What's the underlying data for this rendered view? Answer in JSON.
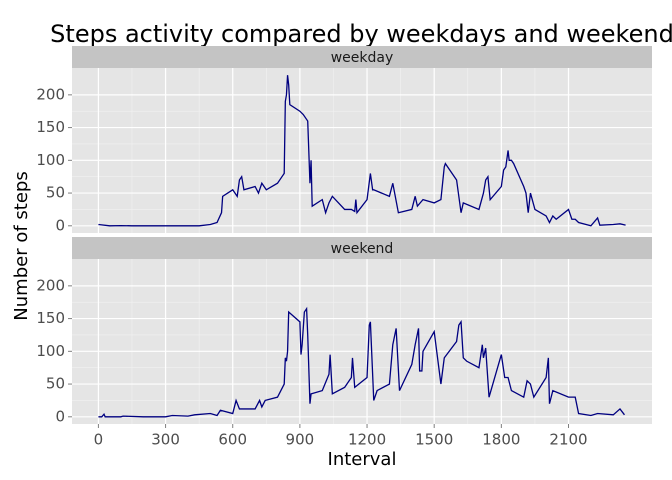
{
  "chart_data": {
    "type": "line",
    "title": "Steps activity compared by weekdays and weekend",
    "x_label": "Interval",
    "y_label": "Number of steps",
    "color": "#000080",
    "grid": true,
    "xlim": [
      -118,
      2473
    ],
    "xticks": [
      0,
      300,
      600,
      900,
      1200,
      1500,
      1800,
      2100
    ],
    "ylim": [
      -11,
      241
    ],
    "yticks": [
      0,
      50,
      100,
      150,
      200
    ],
    "panels": [
      {
        "name": "weekday",
        "x": [
          0,
          50,
          100,
          150,
          200,
          300,
          400,
          450,
          500,
          530,
          550,
          555,
          600,
          620,
          630,
          640,
          650,
          700,
          715,
          730,
          750,
          800,
          820,
          830,
          835,
          840,
          845,
          850,
          855,
          900,
          915,
          935,
          945,
          950,
          955,
          1000,
          1015,
          1030,
          1045,
          1100,
          1130,
          1145,
          1150,
          1155,
          1200,
          1215,
          1225,
          1230,
          1300,
          1315,
          1340,
          1400,
          1415,
          1425,
          1450,
          1500,
          1530,
          1545,
          1550,
          1600,
          1620,
          1630,
          1700,
          1720,
          1730,
          1740,
          1750,
          1800,
          1810,
          1820,
          1830,
          1835,
          1845,
          1855,
          1900,
          1910,
          1920,
          1930,
          1950,
          2000,
          2015,
          2030,
          2045,
          2100,
          2115,
          2130,
          2145,
          2200,
          2230,
          2240,
          2300,
          2330,
          2355
        ],
        "values": [
          2,
          0,
          0.3,
          0,
          0,
          0,
          0,
          0,
          2,
          5,
          20,
          45,
          55,
          45,
          70,
          75,
          55,
          60,
          50,
          65,
          55,
          65,
          75,
          80,
          190,
          200,
          230,
          215,
          185,
          175,
          170,
          160,
          65,
          100,
          30,
          40,
          20,
          35,
          45,
          25,
          25,
          22,
          40,
          20,
          40,
          80,
          55,
          55,
          45,
          65,
          20,
          25,
          45,
          30,
          40,
          35,
          40,
          90,
          95,
          70,
          20,
          35,
          25,
          50,
          70,
          75,
          40,
          60,
          85,
          90,
          115,
          100,
          100,
          95,
          60,
          50,
          20,
          50,
          25,
          15,
          5,
          15,
          10,
          25,
          10,
          10,
          5,
          0,
          12,
          1,
          2,
          3,
          1
        ]
      },
      {
        "name": "weekend",
        "x": [
          0,
          15,
          25,
          30,
          100,
          110,
          200,
          300,
          330,
          400,
          430,
          500,
          530,
          545,
          600,
          615,
          630,
          700,
          720,
          730,
          745,
          800,
          830,
          835,
          840,
          845,
          850,
          900,
          905,
          910,
          920,
          930,
          935,
          945,
          950,
          1000,
          1030,
          1035,
          1045,
          1100,
          1130,
          1135,
          1145,
          1200,
          1210,
          1215,
          1230,
          1245,
          1300,
          1315,
          1330,
          1345,
          1400,
          1415,
          1430,
          1435,
          1445,
          1450,
          1500,
          1530,
          1545,
          1600,
          1610,
          1620,
          1630,
          1645,
          1700,
          1715,
          1720,
          1730,
          1745,
          1800,
          1815,
          1830,
          1845,
          1900,
          1915,
          1930,
          1945,
          2000,
          2010,
          2015,
          2030,
          2100,
          2130,
          2145,
          2200,
          2230,
          2300,
          2330,
          2350
        ],
        "values": [
          0,
          0,
          4,
          0,
          0,
          1,
          0,
          0,
          2,
          1,
          3,
          5,
          2,
          10,
          5,
          25,
          12,
          12,
          25,
          15,
          25,
          30,
          50,
          90,
          85,
          100,
          160,
          145,
          95,
          110,
          160,
          165,
          125,
          20,
          35,
          40,
          65,
          95,
          35,
          45,
          60,
          90,
          45,
          60,
          140,
          145,
          25,
          40,
          50,
          110,
          135,
          40,
          80,
          110,
          135,
          70,
          70,
          100,
          130,
          50,
          90,
          115,
          140,
          145,
          90,
          85,
          75,
          110,
          90,
          105,
          30,
          95,
          60,
          60,
          40,
          30,
          55,
          50,
          30,
          60,
          90,
          20,
          40,
          30,
          30,
          5,
          2,
          5,
          3,
          12,
          3
        ]
      }
    ]
  }
}
